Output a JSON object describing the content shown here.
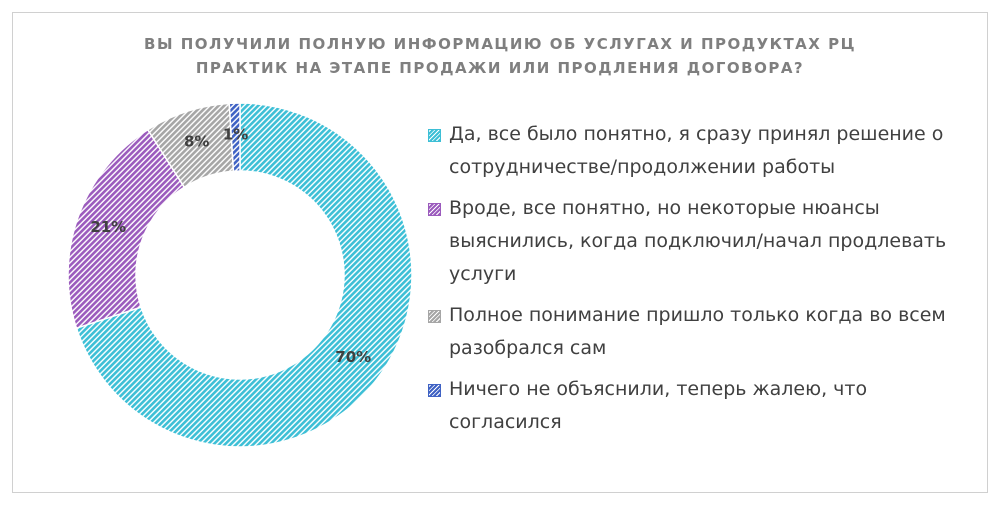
{
  "chart_data": {
    "type": "donut",
    "title": "ВЫ ПОЛУЧИЛИ ПОЛНУЮ ИНФОРМАЦИЮ ОБ УСЛУГАХ И ПРОДУКТАХ РЦ ПРАКТИК НА ЭТАПЕ ПРОДАЖИ ИЛИ ПРОДЛЕНИЯ ДОГОВОРА?",
    "categories": [
      "Да, все было понятно, я сразу принял решение о сотрудничестве/продолжении работы",
      "Вроде, все понятно, но некоторые нюансы выяснились, когда подключил/начал продлевать услуги",
      "Полное понимание пришло только когда во всем разобрался сам",
      "Ничего не объяснили, теперь жалею, что согласился"
    ],
    "values": [
      70,
      21,
      8,
      1
    ],
    "value_labels": [
      "70%",
      "21%",
      "8%",
      "1%"
    ],
    "colors": [
      "#3dbfd6",
      "#9b5bbd",
      "#a6a6a6",
      "#3f62c4"
    ],
    "legend": "right"
  }
}
